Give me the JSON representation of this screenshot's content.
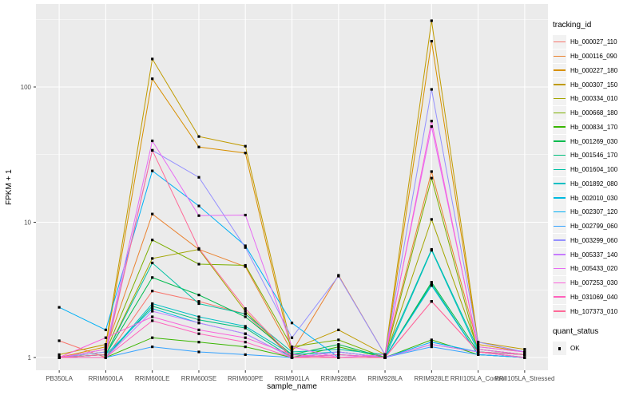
{
  "panel": {
    "background": "#EBEBEB",
    "gridline_color": "#FFFFFF",
    "tick_label_color": "#4D4D4D",
    "tick_mark_color": "#333333",
    "legend_key_fill": "#F2F2F2",
    "point_color": "#000000"
  },
  "chart_data": {
    "type": "line",
    "title": "",
    "xlabel": "sample_name",
    "ylabel": "FPKM + 1",
    "y_scale": "log10",
    "y_ticks": [
      1,
      10,
      100
    ],
    "ylim": [
      1,
      400
    ],
    "grid": true,
    "legend_position": "right",
    "point_shape": "filled-square",
    "legend": {
      "series_title": "tracking_id",
      "shape_title": "quant_status",
      "shape_label": "OK"
    },
    "categories": [
      "PB350LA",
      "RRIM600LA",
      "RRIM600LE",
      "RRIM600SE",
      "RRIM600PE",
      "RRIM901LA",
      "RRIM928BA",
      "RRIM928LA",
      "RRIM928LE",
      "RRII105LA_Control",
      "RRII105LA_Stressed"
    ],
    "series": [
      {
        "name": "Hb_000027_110",
        "color": "#F8766D",
        "values": [
          1.33,
          1.0,
          3.1,
          2.6,
          2.1,
          1.0,
          1.05,
          1.0,
          1.25,
          1.1,
          1.0
        ]
      },
      {
        "name": "Hb_000116_090",
        "color": "#EA8331",
        "values": [
          1.0,
          1.15,
          11.5,
          6.3,
          4.7,
          1.1,
          4.05,
          1.05,
          23.7,
          1.2,
          1.1
        ]
      },
      {
        "name": "Hb_000227_180",
        "color": "#D89000",
        "values": [
          1.0,
          1.2,
          115,
          36,
          32.5,
          1.05,
          1.0,
          1.0,
          218,
          1.25,
          1.1
        ]
      },
      {
        "name": "Hb_000307_150",
        "color": "#C09B00",
        "values": [
          1.05,
          1.25,
          161,
          43,
          36.5,
          1.15,
          1.6,
          1.05,
          309,
          1.3,
          1.15
        ]
      },
      {
        "name": "Hb_000334_010",
        "color": "#A3A500",
        "values": [
          1.0,
          1.05,
          5.4,
          6.3,
          2.2,
          1.0,
          1.0,
          1.0,
          10.5,
          1.15,
          1.05
        ]
      },
      {
        "name": "Hb_000668_180",
        "color": "#7CAE00",
        "values": [
          1.0,
          1.1,
          7.4,
          4.9,
          4.8,
          1.2,
          1.35,
          1.0,
          21.2,
          1.1,
          1.05
        ]
      },
      {
        "name": "Hb_000834_170",
        "color": "#39B600",
        "values": [
          1.0,
          1.0,
          1.4,
          1.3,
          1.2,
          1.0,
          1.2,
          1.0,
          1.35,
          1.05,
          1.0
        ]
      },
      {
        "name": "Hb_001269_030",
        "color": "#00BB4E",
        "values": [
          1.0,
          1.05,
          3.9,
          2.9,
          2.0,
          1.05,
          1.25,
          1.0,
          3.6,
          1.1,
          1.05
        ]
      },
      {
        "name": "Hb_001546_170",
        "color": "#00BF7D",
        "values": [
          1.0,
          1.0,
          2.4,
          1.9,
          1.65,
          1.0,
          1.1,
          1.0,
          3.5,
          1.05,
          1.0
        ]
      },
      {
        "name": "Hb_001604_100",
        "color": "#00C1A3",
        "values": [
          1.0,
          1.05,
          5.0,
          2.5,
          2.1,
          1.1,
          1.15,
          1.05,
          6.3,
          1.15,
          1.05
        ]
      },
      {
        "name": "Hb_001892_080",
        "color": "#00BFC4",
        "values": [
          1.0,
          1.0,
          2.5,
          2.0,
          1.7,
          1.05,
          1.1,
          1.0,
          6.2,
          1.1,
          1.0
        ]
      },
      {
        "name": "Hb_002010_030",
        "color": "#00BAE0",
        "values": [
          1.0,
          1.05,
          2.3,
          1.8,
          1.5,
          1.0,
          1.05,
          1.0,
          3.4,
          1.05,
          1.0
        ]
      },
      {
        "name": "Hb_002307_120",
        "color": "#00B0F6",
        "values": [
          2.35,
          1.6,
          24,
          13.2,
          6.7,
          1.8,
          1.0,
          1.0,
          1.3,
          1.1,
          1.05
        ]
      },
      {
        "name": "Hb_002799_060",
        "color": "#35A2FF",
        "values": [
          1.0,
          1.0,
          1.2,
          1.1,
          1.05,
          1.0,
          1.0,
          1.0,
          1.2,
          1.05,
          1.0
        ]
      },
      {
        "name": "Hb_003299_060",
        "color": "#9590FF",
        "values": [
          1.0,
          1.1,
          34,
          21.5,
          6.5,
          1.4,
          4.0,
          1.05,
          96,
          1.3,
          1.1
        ]
      },
      {
        "name": "Hb_005337_140",
        "color": "#C77CFF",
        "values": [
          1.0,
          1.0,
          2.2,
          1.8,
          1.5,
          1.0,
          1.1,
          1.0,
          1.25,
          1.1,
          1.0
        ]
      },
      {
        "name": "Hb_005433_020",
        "color": "#E76BF3",
        "values": [
          1.0,
          1.15,
          40,
          11.2,
          11.3,
          1.2,
          1.0,
          1.05,
          51,
          1.2,
          1.1
        ]
      },
      {
        "name": "Hb_007253_030",
        "color": "#FA62DB",
        "values": [
          1.0,
          1.4,
          2.0,
          1.6,
          1.4,
          1.05,
          1.0,
          1.0,
          56,
          1.15,
          1.05
        ]
      },
      {
        "name": "Hb_031069_040",
        "color": "#FF62BC",
        "values": [
          1.0,
          1.0,
          1.87,
          1.5,
          1.3,
          1.0,
          1.05,
          1.0,
          2.6,
          1.1,
          1.0
        ]
      },
      {
        "name": "Hb_107373_010",
        "color": "#FF6A98",
        "values": [
          1.0,
          1.05,
          34,
          6.4,
          2.3,
          1.0,
          1.0,
          1.0,
          2.6,
          1.1,
          1.05
        ]
      }
    ]
  }
}
